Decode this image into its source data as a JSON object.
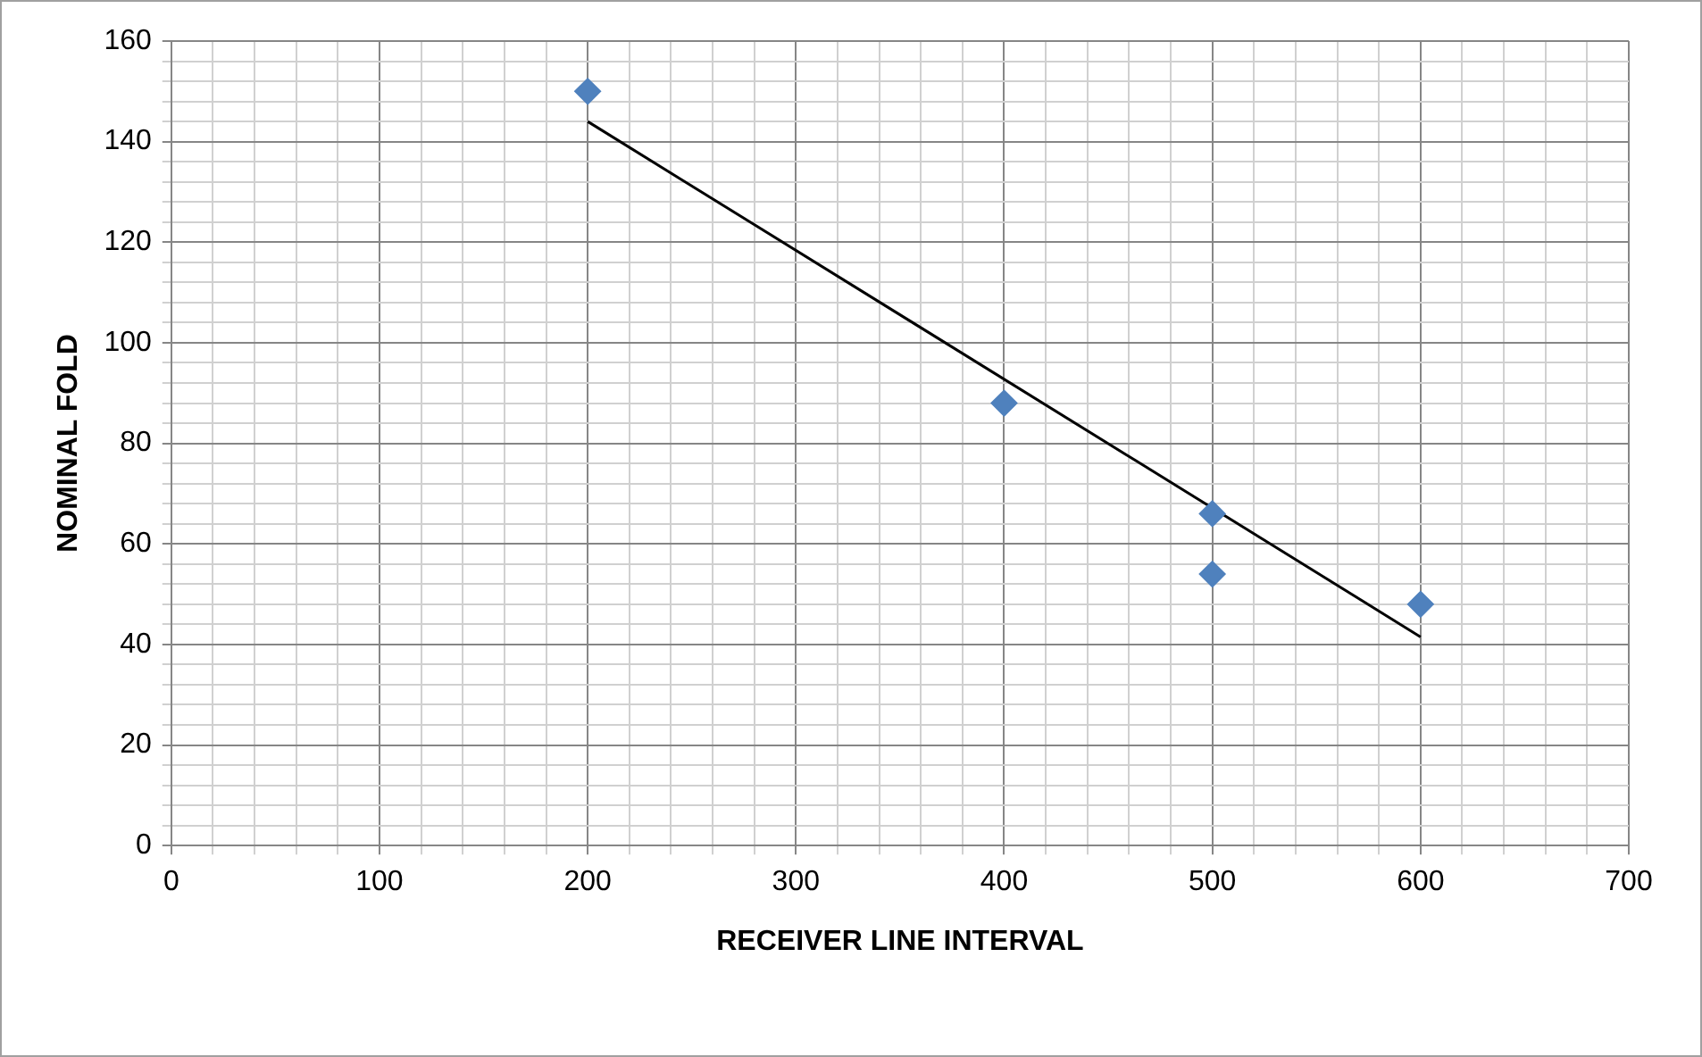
{
  "chart_data": {
    "type": "scatter",
    "xlabel": "RECEIVER LINE INTERVAL",
    "ylabel": "NOMINAL FOLD",
    "series": [
      {
        "type": "scatter",
        "color": "#4f81bd",
        "x": [
          200,
          400,
          500,
          500,
          600
        ],
        "values": [
          150,
          88,
          66,
          54,
          48
        ],
        "marker": "diamond"
      },
      {
        "type": "line",
        "color": "#000000",
        "x": [
          200,
          600
        ],
        "values": [
          144,
          41.5
        ],
        "marker": "none"
      }
    ],
    "xlim": [
      0,
      700
    ],
    "ylim": [
      0,
      160
    ],
    "xticks": [
      0,
      {
        "value": 20,
        "label": null
      },
      {
        "value": 40,
        "label": null
      },
      {
        "value": 60,
        "label": null
      },
      {
        "value": 80,
        "label": null
      },
      100,
      {
        "value": 120,
        "label": null
      },
      {
        "value": 140,
        "label": null
      },
      {
        "value": 160,
        "label": null
      },
      {
        "value": 180,
        "label": null
      },
      200,
      {
        "value": 220,
        "label": null
      },
      {
        "value": 240,
        "label": null
      },
      {
        "value": 260,
        "label": null
      },
      {
        "value": 280,
        "label": null
      },
      300,
      {
        "value": 320,
        "label": null
      },
      {
        "value": 340,
        "label": null
      },
      {
        "value": 360,
        "label": null
      },
      {
        "value": 380,
        "label": null
      },
      400,
      {
        "value": 420,
        "label": null
      },
      {
        "value": 440,
        "label": null
      },
      {
        "value": 460,
        "label": null
      },
      {
        "value": 480,
        "label": null
      },
      500,
      {
        "value": 520,
        "label": null
      },
      {
        "value": 540,
        "label": null
      },
      {
        "value": 560,
        "label": null
      },
      {
        "value": 580,
        "label": null
      },
      600,
      {
        "value": 620,
        "label": null
      },
      {
        "value": 640,
        "label": null
      },
      {
        "value": 660,
        "label": null
      },
      {
        "value": 680,
        "label": null
      },
      700
    ],
    "yticks": [
      0,
      {
        "value": 4,
        "label": null
      },
      {
        "value": 8,
        "label": null
      },
      {
        "value": 12,
        "label": null
      },
      {
        "value": 16,
        "label": null
      },
      20,
      {
        "value": 24,
        "label": null
      },
      {
        "value": 28,
        "label": null
      },
      {
        "value": 32,
        "label": null
      },
      {
        "value": 36,
        "label": null
      },
      40,
      {
        "value": 44,
        "label": null
      },
      {
        "value": 48,
        "label": null
      },
      {
        "value": 52,
        "label": null
      },
      {
        "value": 56,
        "label": null
      },
      60,
      {
        "value": 64,
        "label": null
      },
      {
        "value": 68,
        "label": null
      },
      {
        "value": 72,
        "label": null
      },
      {
        "value": 76,
        "label": null
      },
      80,
      {
        "value": 84,
        "label": null
      },
      {
        "value": 88,
        "label": null
      },
      {
        "value": 92,
        "label": null
      },
      {
        "value": 96,
        "label": null
      },
      100,
      {
        "value": 104,
        "label": null
      },
      {
        "value": 108,
        "label": null
      },
      {
        "value": 112,
        "label": null
      },
      {
        "value": 116,
        "label": null
      },
      120,
      {
        "value": 124,
        "label": null
      },
      {
        "value": 128,
        "label": null
      },
      {
        "value": 132,
        "label": null
      },
      {
        "value": 136,
        "label": null
      },
      140,
      {
        "value": 144,
        "label": null
      },
      {
        "value": 148,
        "label": null
      },
      {
        "value": 152,
        "label": null
      },
      {
        "value": 156,
        "label": null
      },
      160
    ],
    "grid": true,
    "legend": false
  }
}
